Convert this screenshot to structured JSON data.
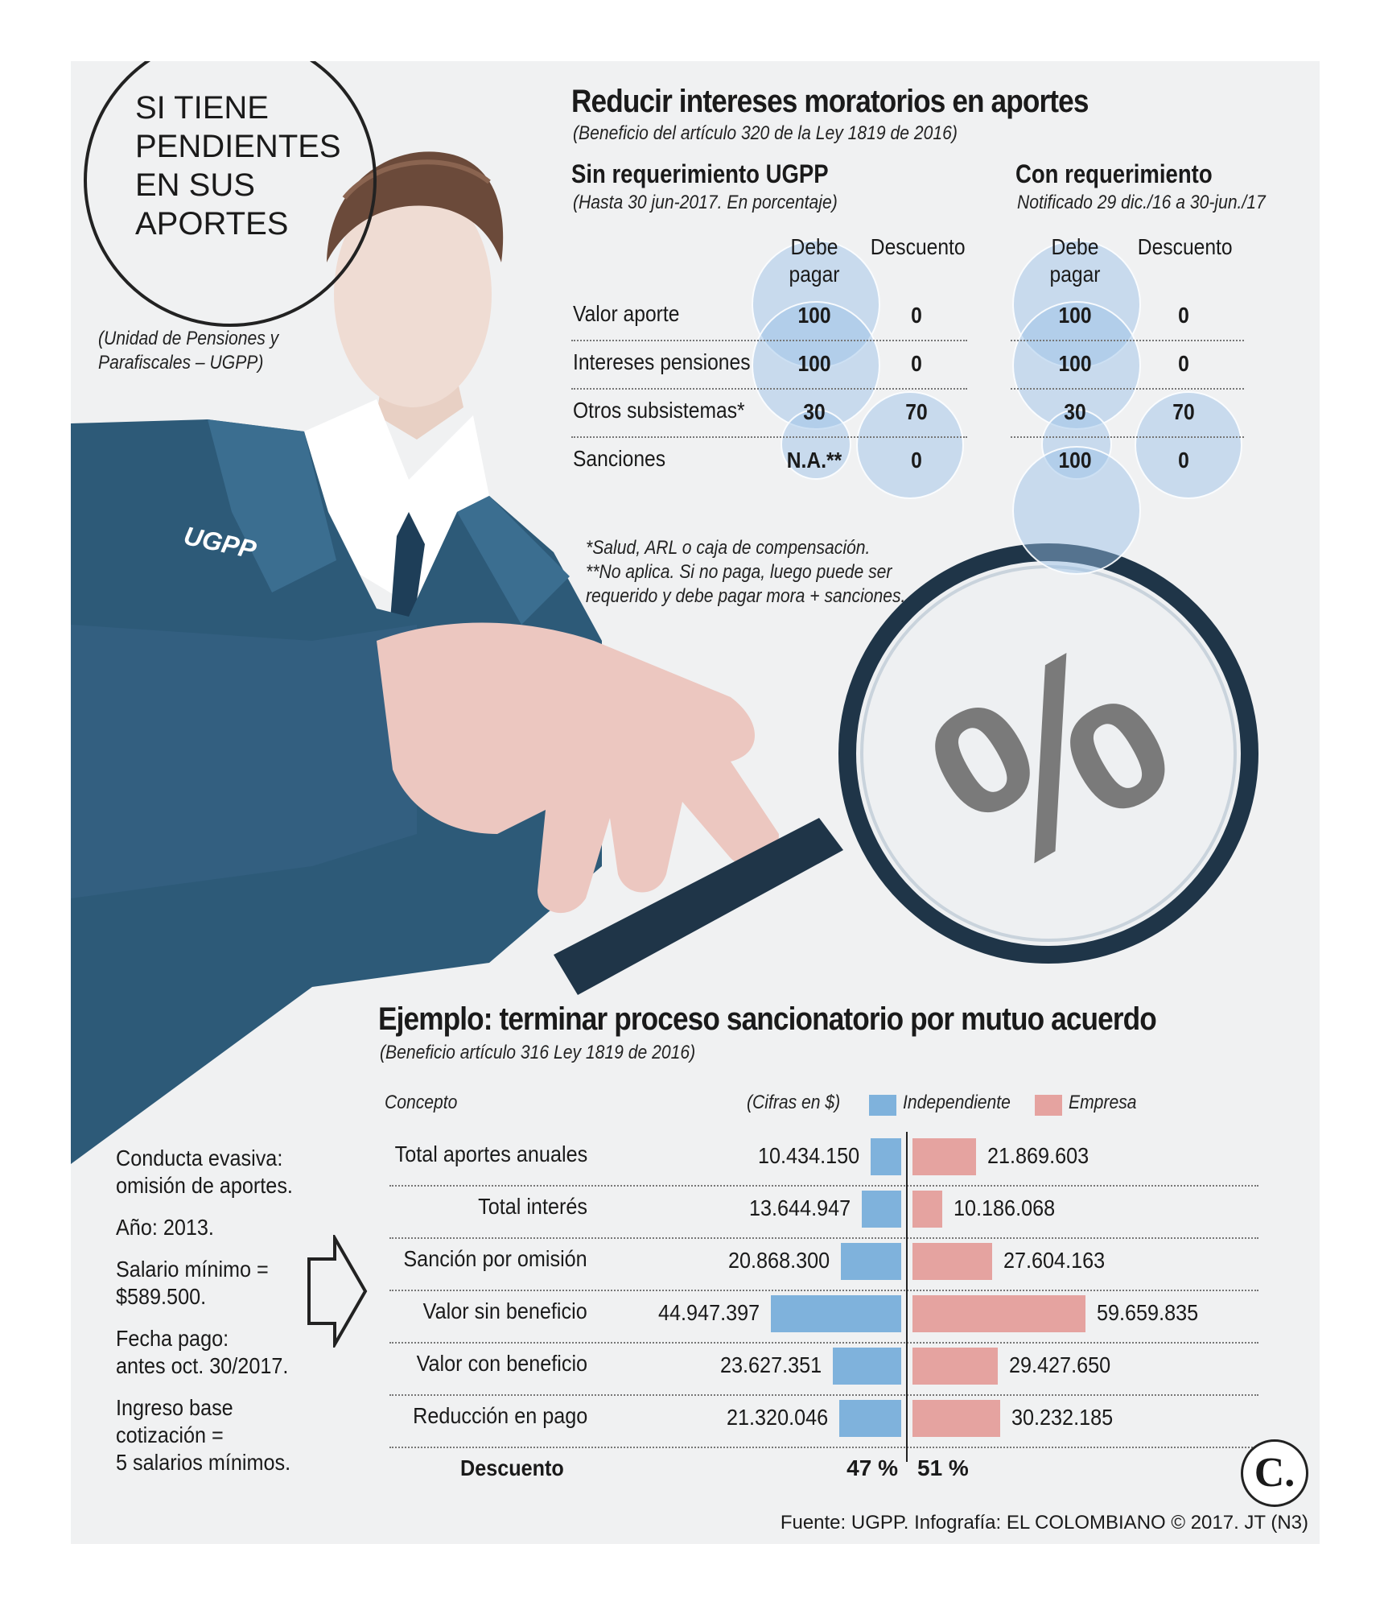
{
  "circle_text": [
    "SI TIENE",
    "PENDIENTES",
    "EN SUS",
    "APORTES"
  ],
  "entity_note": [
    "(Unidad de Pensiones y",
    "Parafiscales – UGPP)"
  ],
  "suit_label": "UGPP",
  "magnifier_symbol": "%",
  "top": {
    "title": "Reducir intereses moratorios en aportes",
    "subtitle": "(Beneficio del artículo 320 de la Ley 1819 de 2016)",
    "left": {
      "heading": "Sin requerimiento UGPP",
      "sub": "(Hasta 30 jun-2017. En porcentaje)",
      "col_debe": [
        "Debe",
        "pagar"
      ],
      "col_descuento": "Descuento"
    },
    "right": {
      "heading": "Con requerimiento",
      "sub": "Notificado 29 dic./16 a 30-jun./17",
      "col_debe": [
        "Debe",
        "pagar"
      ],
      "col_descuento": "Descuento"
    },
    "footnotes": [
      "*Salud, ARL o caja de compensación.",
      "**No aplica. Si no paga, luego puede ser",
      "requerido y debe pagar mora + sanciones."
    ]
  },
  "bottom": {
    "title": "Ejemplo: terminar proceso sancionatorio por mutuo acuerdo",
    "subtitle": "(Beneficio artículo 316 Ley 1819 de 2016)",
    "concept_header": "Concepto",
    "units_note": "(Cifras en $)",
    "discount_label": "Descuento",
    "discount_independiente": "47 %",
    "discount_empresa": "51 %"
  },
  "side_info": [
    [
      "Conducta evasiva:",
      "omisión de aportes."
    ],
    [
      "Año: 2013."
    ],
    [
      "Salario mínimo =",
      "$589.500."
    ],
    [
      "Fecha pago:",
      "antes oct. 30/2017."
    ],
    [
      "Ingreso base",
      "cotización =",
      "5 salarios mínimos."
    ]
  ],
  "logo_letter": "C.",
  "footer": "Fuente: UGPP. Infografía: EL COLOMBIANO © 2017. JT (N3)",
  "colors": {
    "independiente": "#7fb2dc",
    "empresa": "#e5a3a0",
    "bubble": "#9cc1e8",
    "suit": "#2d5a78"
  },
  "chart_data": [
    {
      "type": "table",
      "title": "Reducir intereses moratorios en aportes",
      "rows": [
        "Valor aporte",
        "Intereses pensiones",
        "Otros subsistemas*",
        "Sanciones"
      ],
      "groups": [
        {
          "name": "Sin requerimiento UGPP",
          "debe_pagar": [
            "100",
            "100",
            "30",
            "N.A.**"
          ],
          "descuento": [
            "0",
            "0",
            "70",
            "0"
          ]
        },
        {
          "name": "Con requerimiento",
          "debe_pagar": [
            "100",
            "100",
            "30",
            "100"
          ],
          "descuento": [
            "0",
            "0",
            "70",
            "0"
          ]
        }
      ]
    },
    {
      "type": "bar",
      "title": "Ejemplo: terminar proceso sancionatorio por mutuo acuerdo",
      "categories": [
        "Total aportes anuales",
        "Total interés",
        "Sanción por omisión",
        "Valor sin beneficio",
        "Valor con beneficio",
        "Reducción en pago"
      ],
      "series": [
        {
          "name": "Independiente",
          "values": [
            10434150,
            13644947,
            20868300,
            44947397,
            23627351,
            21320046
          ],
          "labels": [
            "10.434.150",
            "13.644.947",
            "20.868.300",
            "44.947.397",
            "23.627.351",
            "21.320.046"
          ]
        },
        {
          "name": "Empresa",
          "values": [
            21869603,
            10186068,
            27604163,
            59659835,
            29427650,
            30232185
          ],
          "labels": [
            "21.869.603",
            "10.186.068",
            "27.604.163",
            "59.659.835",
            "29.427.650",
            "30.232.185"
          ]
        }
      ],
      "legend": "top"
    }
  ]
}
